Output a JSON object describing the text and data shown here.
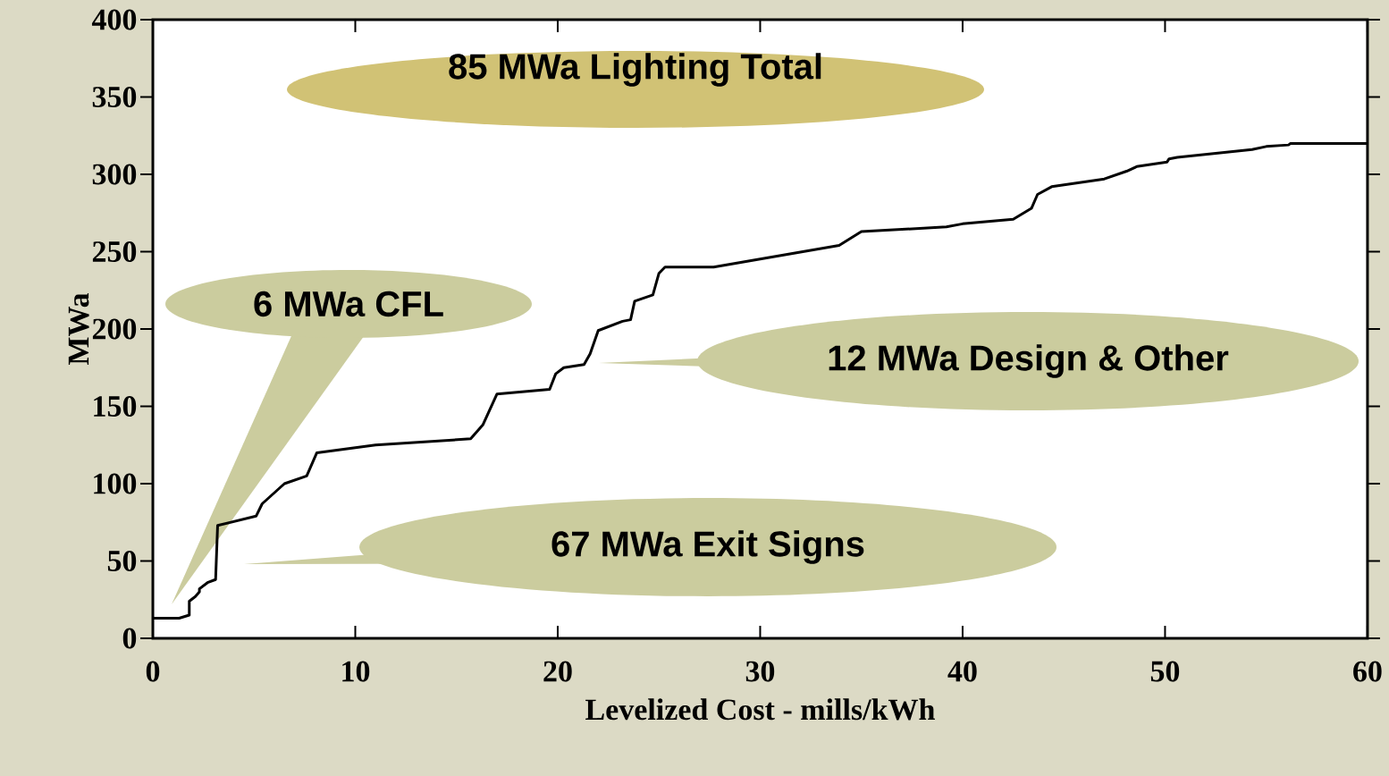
{
  "chart_data": {
    "type": "line",
    "xlabel": "Levelized Cost - mills/kWh",
    "ylabel": "MWa",
    "color": "#000000",
    "x": [
      0,
      1.3,
      1.8,
      1.8,
      2.1,
      2.3,
      2.3,
      2.7,
      3.1,
      3.2,
      5.1,
      5.4,
      6.5,
      7.6,
      8.1,
      11,
      15.7,
      16.3,
      17,
      19.6,
      19.9,
      20.3,
      21.3,
      21.6,
      22,
      23.2,
      23.6,
      23.8,
      24.7,
      25,
      25.3,
      27.7,
      33.9,
      35,
      39.2,
      40,
      42.5,
      43.4,
      43.7,
      44.4,
      47,
      48.1,
      48.6,
      50.1,
      50.2,
      50.6,
      54.3,
      55,
      56.1,
      56.2,
      60
    ],
    "values": [
      13,
      13,
      15,
      24,
      27,
      30,
      32,
      36,
      38,
      73,
      79,
      87,
      100,
      105,
      120,
      125,
      129,
      138,
      158,
      161,
      171,
      175,
      177,
      184,
      199,
      205,
      206,
      218,
      222,
      236,
      240,
      240,
      254,
      263,
      266,
      268,
      271,
      278,
      287,
      292,
      297,
      302,
      305,
      308,
      310,
      311,
      316,
      318,
      319,
      320,
      320
    ],
    "xlim": [
      0,
      60
    ],
    "ylim": [
      0,
      400
    ],
    "xticks": [
      0,
      10,
      20,
      30,
      40,
      50,
      60
    ],
    "yticks": [
      0,
      50,
      100,
      150,
      200,
      250,
      300,
      350,
      400
    ],
    "annotations": [
      "85 MWa Lighting Total",
      "6 MWa CFL",
      "12 MWa Design & Other",
      "67 MWa Exit Signs"
    ]
  }
}
